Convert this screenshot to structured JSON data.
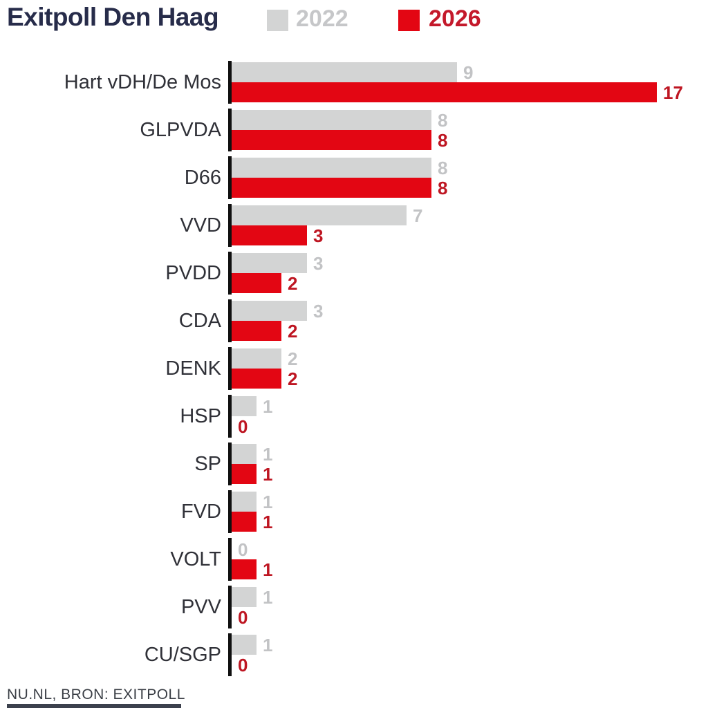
{
  "title": "Exitpoll Den Haag",
  "legend": {
    "items": [
      {
        "label": "2022"
      },
      {
        "label": "2026"
      }
    ]
  },
  "footer": "NU.NL, BRON: EXITPOLL",
  "colors": {
    "title": "#272c4a",
    "bar_2022": "#d3d4d4",
    "bar_2026": "#e30613",
    "value_label_2022": "#c2c3c5",
    "value_label_2026": "#be1622",
    "legend_label_2022": "#c6c7c9",
    "legend_label_2026": "#c4192b",
    "party_label": "#303138",
    "axis": "#101010",
    "footer_text": "#3a3e45",
    "bottom_strip": "#3c414d"
  },
  "chart_data": {
    "type": "bar",
    "orientation": "horizontal",
    "title": "Exitpoll Den Haag",
    "categories": [
      "Hart vDH/De Mos",
      "GLPVDA",
      "D66",
      "VVD",
      "PVDD",
      "CDA",
      "DENK",
      "HSP",
      "SP",
      "FVD",
      "VOLT",
      "PVV",
      "CU/SGP"
    ],
    "series": [
      {
        "name": "2022",
        "values": [
          9,
          8,
          8,
          7,
          3,
          3,
          2,
          1,
          1,
          1,
          0,
          1,
          1
        ]
      },
      {
        "name": "2026",
        "values": [
          17,
          8,
          8,
          3,
          2,
          2,
          2,
          0,
          1,
          1,
          1,
          0,
          0
        ]
      }
    ],
    "xlim": [
      0,
      17
    ],
    "grid": false,
    "legend_position": "top",
    "value_labels": true,
    "source": "NU.NL, BRON: EXITPOLL"
  }
}
